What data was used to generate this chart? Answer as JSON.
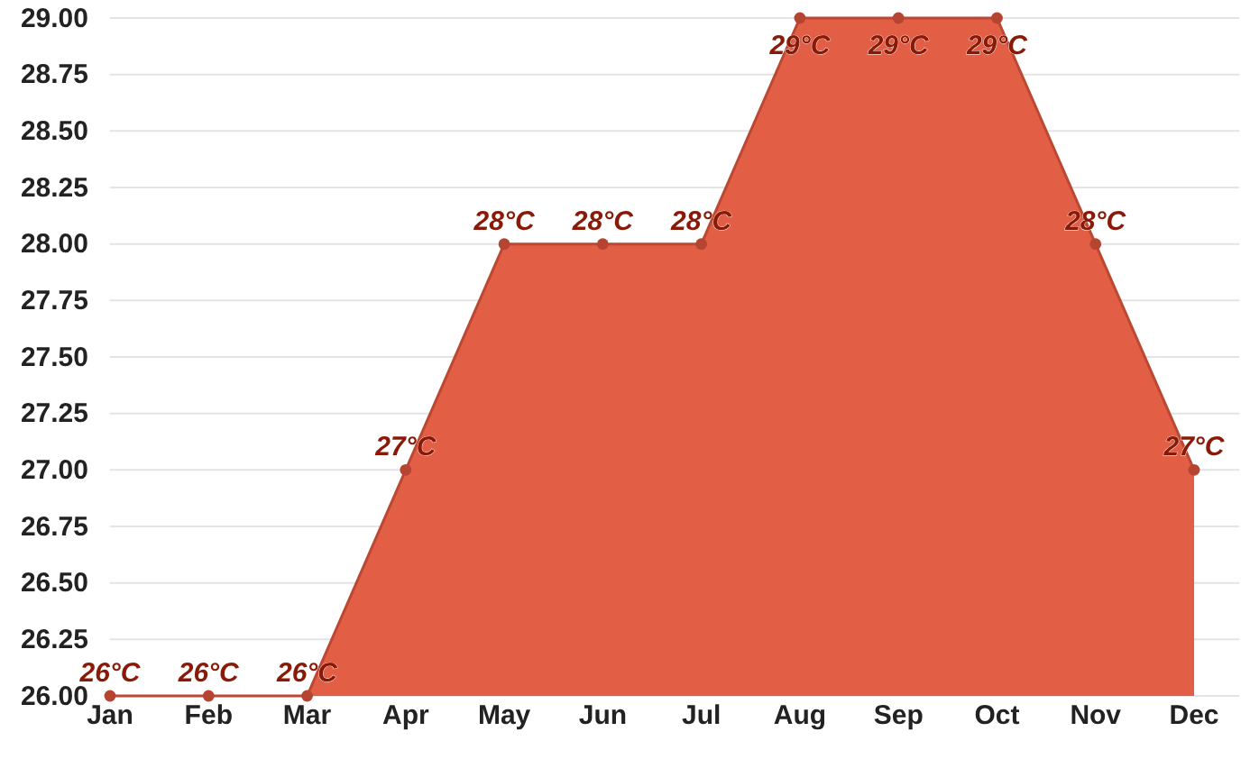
{
  "chart_data": {
    "type": "area",
    "categories": [
      "Jan",
      "Feb",
      "Mar",
      "Apr",
      "May",
      "Jun",
      "Jul",
      "Aug",
      "Sep",
      "Oct",
      "Nov",
      "Dec"
    ],
    "series": [
      {
        "color": "#e0563c",
        "values": [
          26,
          26,
          26,
          27,
          28,
          28,
          28,
          29,
          29,
          29,
          28,
          27
        ],
        "value_labels": [
          "26°C",
          "26°C",
          "26°C",
          "27°C",
          "28°C",
          "28°C",
          "28°C",
          "29°C",
          "29°C",
          "29°C",
          "28°C",
          "27°C"
        ]
      }
    ],
    "ylim": [
      26,
      29
    ],
    "yticks": [
      {
        "value": 26,
        "label": "26.00"
      },
      {
        "value": 26.25,
        "label": "26.25"
      },
      {
        "value": 26.5,
        "label": "26.50"
      },
      {
        "value": 26.75,
        "label": "26.75"
      },
      {
        "value": 27,
        "label": "27.00"
      },
      {
        "value": 27.25,
        "label": "27.25"
      },
      {
        "value": 27.5,
        "label": "27.50"
      },
      {
        "value": 27.75,
        "label": "27.75"
      },
      {
        "value": 28,
        "label": "28.00"
      },
      {
        "value": 28.25,
        "label": "28.25"
      },
      {
        "value": 28.5,
        "label": "28.50"
      },
      {
        "value": 28.75,
        "label": "28.75"
      },
      {
        "value": 29,
        "label": "29.00"
      }
    ],
    "grid": "y",
    "marker": "circle"
  }
}
